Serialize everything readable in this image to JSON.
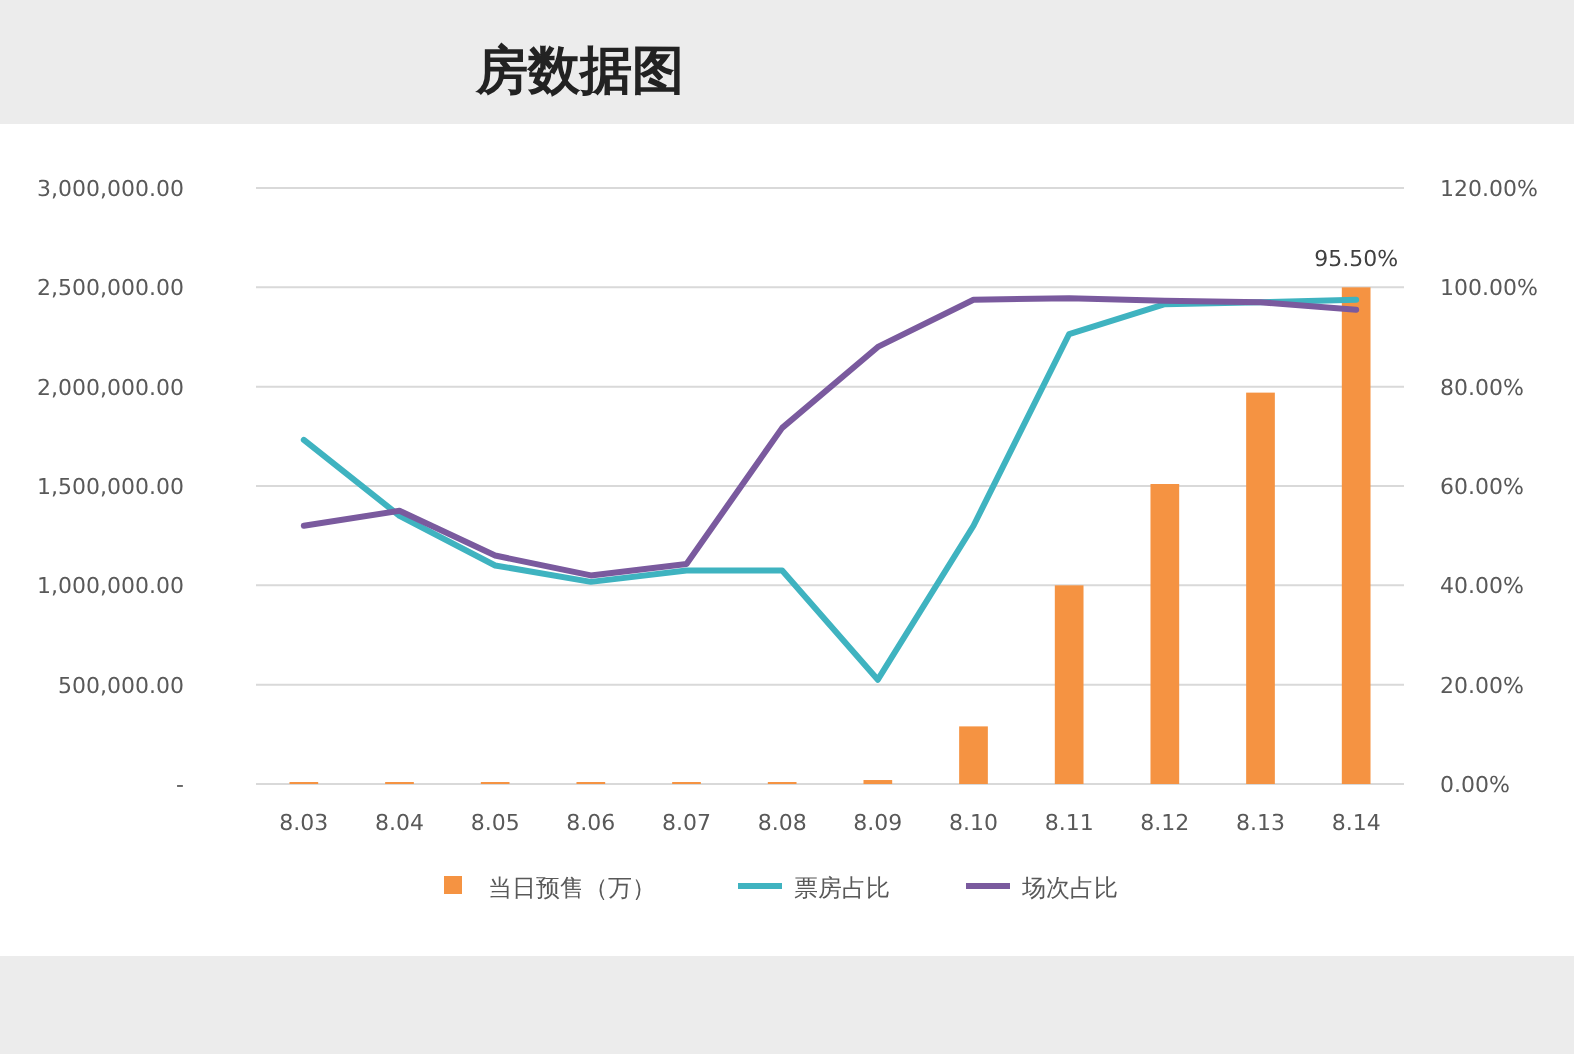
{
  "chart_data": {
    "type": "bar",
    "title": "房数据图",
    "categories": [
      "8.03",
      "8.04",
      "8.05",
      "8.06",
      "8.07",
      "8.08",
      "8.09",
      "8.10",
      "8.11",
      "8.12",
      "8.13",
      "8.14"
    ],
    "series": [
      {
        "name": "当日预售（万）",
        "color": "#f59342",
        "values": [
          10000,
          10000,
          10000,
          10000,
          10000,
          10000,
          20000,
          290000,
          1000000,
          1510000,
          1970000,
          2500000
        ]
      },
      {
        "name": "票房占比",
        "type": "line",
        "axis": "y2",
        "color": "#3fb3c0",
        "values": [
          69.3,
          54,
          44,
          40.7,
          43,
          43,
          21,
          52,
          90.6,
          96.6,
          97,
          97.5
        ]
      },
      {
        "name": "场次占比",
        "type": "line",
        "axis": "y2",
        "color": "#7a5a9e",
        "values": [
          52,
          55,
          46,
          42,
          44.3,
          71.7,
          88,
          97.5,
          97.8,
          97.3,
          97,
          95.5
        ],
        "value_labels": [
          null,
          null,
          null,
          null,
          null,
          null,
          null,
          null,
          null,
          null,
          null,
          "95.50%"
        ]
      }
    ],
    "ylim": [
      0,
      3000000
    ],
    "yticks": [
      {
        "value": 0,
        "label": "-"
      },
      {
        "value": 500000,
        "label": "500,000.00"
      },
      {
        "value": 1000000,
        "label": "1,000,000.00"
      },
      {
        "value": 1500000,
        "label": "1,500,000.00"
      },
      {
        "value": 2000000,
        "label": "2,000,000.00"
      },
      {
        "value": 2500000,
        "label": "2,500,000.00"
      },
      {
        "value": 3000000,
        "label": "3,000,000.00"
      }
    ],
    "y2lim": [
      0,
      120
    ],
    "y2ticks": [
      {
        "value": 0,
        "label": "0.00%"
      },
      {
        "value": 20,
        "label": "20.00%"
      },
      {
        "value": 40,
        "label": "40.00%"
      },
      {
        "value": 60,
        "label": "60.00%"
      },
      {
        "value": 80,
        "label": "80.00%"
      },
      {
        "value": 100,
        "label": "100.00%"
      },
      {
        "value": 120,
        "label": "120.00%"
      }
    ],
    "grid": "y",
    "legend": "bottom"
  }
}
